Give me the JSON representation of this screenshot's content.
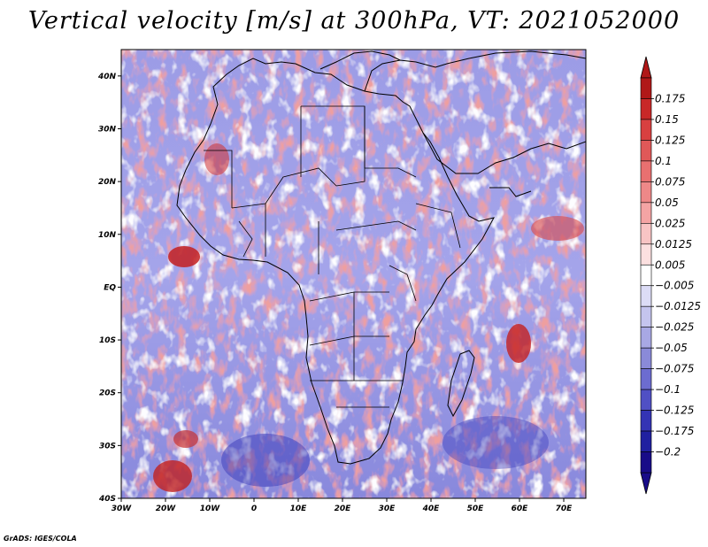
{
  "title": "Vertical velocity [m/s] at 300hPa, VT: 2021052000",
  "credit": "GrADS: IGES/COLA",
  "map": {
    "lon_range": [
      -30,
      75
    ],
    "lat_range": [
      -40,
      45
    ],
    "lon_ticks": [
      "30W",
      "20W",
      "10W",
      "0",
      "10E",
      "20E",
      "30E",
      "40E",
      "50E",
      "60E",
      "70E"
    ],
    "lat_ticks": [
      "40S",
      "30S",
      "20S",
      "10S",
      "EQ",
      "10N",
      "20N",
      "30N",
      "40N"
    ],
    "lon_tick_values": [
      -30,
      -20,
      -10,
      0,
      10,
      20,
      30,
      40,
      50,
      60,
      70
    ],
    "lat_tick_values": [
      -40,
      -30,
      -20,
      -10,
      0,
      10,
      20,
      30,
      40
    ]
  },
  "colorbar": {
    "labels": [
      "0.175",
      "0.15",
      "0.125",
      "0.1",
      "0.075",
      "0.05",
      "0.025",
      "0.0125",
      "0.005",
      "−0.005",
      "−0.0125",
      "−0.025",
      "−0.05",
      "−0.075",
      "−0.1",
      "−0.125",
      "−0.175",
      "−0.2"
    ],
    "colors": [
      "#b01818",
      "#c82828",
      "#d84040",
      "#e05858",
      "#e87070",
      "#ee8888",
      "#f4a4a4",
      "#f8c4c4",
      "#fce0e0",
      "#ffffff",
      "#dcdcf6",
      "#c4c4ee",
      "#a8a8e4",
      "#8a8ad8",
      "#6c6cd0",
      "#5050c4",
      "#3434b4",
      "#2020a0",
      "#180c88"
    ]
  }
}
